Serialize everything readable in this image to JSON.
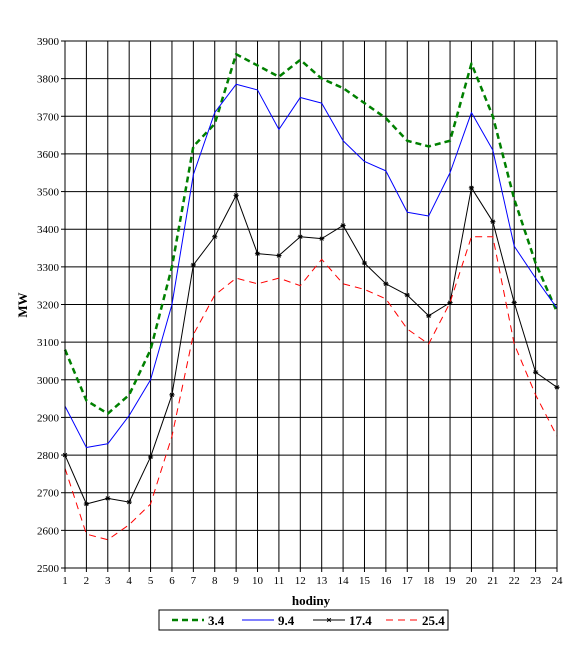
{
  "chart_data": {
    "type": "line",
    "xlabel": "hodiny",
    "ylabel": "MW",
    "x": [
      1,
      2,
      3,
      4,
      5,
      6,
      7,
      8,
      9,
      10,
      11,
      12,
      13,
      14,
      15,
      16,
      17,
      18,
      19,
      20,
      21,
      22,
      23,
      24
    ],
    "xlim": [
      1,
      24
    ],
    "ylim": [
      2500,
      3900
    ],
    "ytick_step": 100,
    "grid": true,
    "legend_position": "bottom",
    "series": [
      {
        "name": "3.4",
        "color": "#008000",
        "dash": "dashed-thick",
        "marker": "none",
        "values": [
          3080,
          2945,
          2910,
          2960,
          3080,
          3300,
          3620,
          3680,
          3865,
          3835,
          3805,
          3850,
          3800,
          3775,
          3735,
          3695,
          3635,
          3620,
          3635,
          3840,
          3700,
          3480,
          3310,
          3180
        ]
      },
      {
        "name": "9.4",
        "color": "#0000ff",
        "dash": "solid",
        "marker": "none",
        "values": [
          2930,
          2820,
          2830,
          2905,
          3000,
          3200,
          3545,
          3710,
          3785,
          3770,
          3665,
          3750,
          3735,
          3635,
          3580,
          3555,
          3445,
          3435,
          3550,
          3710,
          3610,
          3355,
          3270,
          3190
        ]
      },
      {
        "name": "17.4",
        "color": "#000000",
        "dash": "solid",
        "marker": "star",
        "values": [
          2800,
          2670,
          2685,
          2675,
          2795,
          2960,
          3305,
          3380,
          3490,
          3335,
          3330,
          3380,
          3375,
          3410,
          3310,
          3255,
          3225,
          3170,
          3205,
          3510,
          3420,
          3205,
          3020,
          2980
        ]
      },
      {
        "name": "25.4",
        "color": "#ff0000",
        "dash": "dashed",
        "marker": "none",
        "values": [
          2765,
          2590,
          2575,
          2615,
          2670,
          2850,
          3120,
          3225,
          3270,
          3255,
          3270,
          3250,
          3320,
          3255,
          3240,
          3215,
          3135,
          3095,
          3205,
          3380,
          3380,
          3095,
          2960,
          2850
        ]
      }
    ]
  }
}
